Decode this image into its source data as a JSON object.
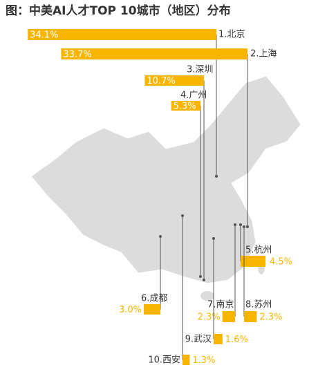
{
  "chart_data": {
    "type": "bar",
    "title": "图：中美AI人才TOP 10城市（地区）分布",
    "categories": [
      "1.北京",
      "2.上海",
      "3.深圳",
      "4.广州",
      "5.杭州",
      "6.成都",
      "7.南京",
      "8.苏州",
      "9.武汉",
      "10.西安"
    ],
    "values": [
      34.1,
      33.7,
      10.7,
      5.3,
      4.5,
      3.0,
      2.3,
      2.3,
      1.6,
      1.3
    ],
    "value_labels": [
      "34.1%",
      "33.7%",
      "10.7%",
      "5.3%",
      "4.5%",
      "3.0%",
      "2.3%",
      "2.3%",
      "1.6%",
      "1.3%"
    ],
    "color": "#f7b500"
  }
}
